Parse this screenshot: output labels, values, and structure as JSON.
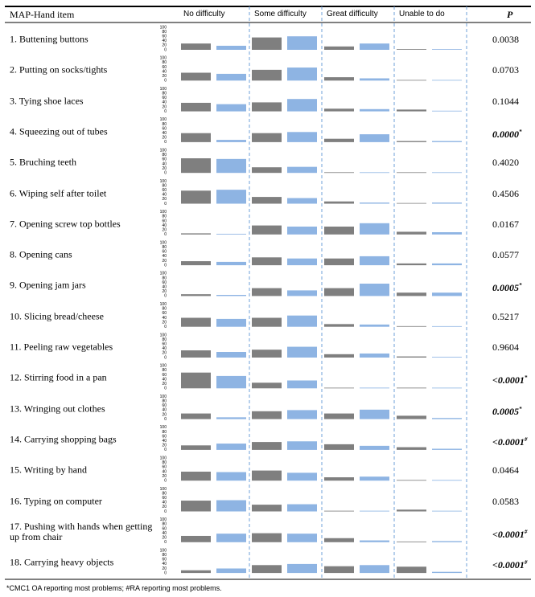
{
  "header": {
    "item": "MAP-Hand item",
    "groups": [
      "No difficulty",
      "Some difficulty",
      "Great difficulty",
      "Unable to do"
    ],
    "p": "P"
  },
  "chart": {
    "ylim": [
      0,
      100
    ],
    "ticks": [
      100,
      80,
      60,
      40,
      20,
      0
    ],
    "colors": [
      "#7f7f7f",
      "#8eb4e3"
    ]
  },
  "rows": [
    {
      "item": "1. Buttening buttons",
      "values": [
        [
          28,
          18
        ],
        [
          55,
          60
        ],
        [
          15,
          28
        ],
        [
          3,
          0
        ]
      ],
      "p": "0.0038",
      "bold": false
    },
    {
      "item": "2. Putting on socks/tights",
      "values": [
        [
          35,
          30
        ],
        [
          48,
          58
        ],
        [
          15,
          10
        ],
        [
          2,
          0
        ]
      ],
      "p": "0.0703",
      "bold": false
    },
    {
      "item": "3. Tying shoe laces",
      "values": [
        [
          38,
          32
        ],
        [
          40,
          55
        ],
        [
          12,
          10
        ],
        [
          8,
          2
        ]
      ],
      "p": "0.1044",
      "bold": false
    },
    {
      "item": "4. Squeezing out of tubes",
      "values": [
        [
          40,
          10
        ],
        [
          40,
          45
        ],
        [
          15,
          35
        ],
        [
          5,
          5
        ]
      ],
      "p": "0.0000",
      "mark": "*",
      "bold": true
    },
    {
      "item": "5. Bruching teeth",
      "values": [
        [
          65,
          62
        ],
        [
          25,
          27
        ],
        [
          3,
          2
        ],
        [
          0,
          0
        ]
      ],
      "p": "0.4020",
      "bold": false
    },
    {
      "item": "6. Wiping self after toilet",
      "values": [
        [
          58,
          62
        ],
        [
          30,
          25
        ],
        [
          10,
          5
        ],
        [
          0,
          5
        ]
      ],
      "p": "0.4506",
      "bold": false
    },
    {
      "item": "7. Opening screw top bottles",
      "values": [
        [
          5,
          3
        ],
        [
          40,
          35
        ],
        [
          35,
          50
        ],
        [
          12,
          10
        ]
      ],
      "p": "0.0167",
      "bold": false
    },
    {
      "item": "8. Opening cans",
      "values": [
        [
          18,
          15
        ],
        [
          35,
          30
        ],
        [
          30,
          40
        ],
        [
          8,
          8
        ]
      ],
      "p": "0.0577",
      "bold": false
    },
    {
      "item": "9. Opening jam jars",
      "values": [
        [
          8,
          5
        ],
        [
          35,
          25
        ],
        [
          35,
          55
        ],
        [
          15,
          15
        ]
      ],
      "p": "0.0005",
      "mark": "*",
      "bold": true
    },
    {
      "item": "10. Slicing bread/cheese",
      "values": [
        [
          40,
          35
        ],
        [
          40,
          50
        ],
        [
          12,
          10
        ],
        [
          3,
          0
        ]
      ],
      "p": "0.5217",
      "bold": false
    },
    {
      "item": "11. Peeling raw vegetables",
      "values": [
        [
          32,
          25
        ],
        [
          35,
          48
        ],
        [
          15,
          18
        ],
        [
          5,
          3
        ]
      ],
      "p": "0.9604",
      "bold": false
    },
    {
      "item": "12. Stirring food in a pan",
      "values": [
        [
          70,
          55
        ],
        [
          25,
          35
        ],
        [
          2,
          3
        ],
        [
          3,
          0
        ]
      ],
      "p": "<0.0001",
      "mark": "*",
      "bold": true
    },
    {
      "item": "13. Wringing out clothes",
      "values": [
        [
          25,
          8
        ],
        [
          35,
          40
        ],
        [
          25,
          42
        ],
        [
          15,
          5
        ]
      ],
      "p": "0.0005",
      "mark": "*",
      "bold": true
    },
    {
      "item": "14. Carrying shopping bags",
      "values": [
        [
          20,
          28
        ],
        [
          35,
          38
        ],
        [
          25,
          18
        ],
        [
          12,
          5
        ]
      ],
      "p": "<0.0001",
      "mark": "#",
      "bold": true
    },
    {
      "item": "15. Writing by hand",
      "values": [
        [
          40,
          38
        ],
        [
          45,
          35
        ],
        [
          15,
          18
        ],
        [
          3,
          3
        ]
      ],
      "p": "0.0464",
      "bold": false
    },
    {
      "item": "16. Typing on computer",
      "values": [
        [
          48,
          50
        ],
        [
          30,
          32
        ],
        [
          3,
          3
        ],
        [
          8,
          0
        ]
      ],
      "p": "0.0583",
      "bold": false
    },
    {
      "item": "17. Pushing with hands when getting up from chair",
      "values": [
        [
          28,
          38
        ],
        [
          40,
          38
        ],
        [
          18,
          8
        ],
        [
          3,
          5
        ]
      ],
      "p": "<0.0001",
      "mark": "#",
      "bold": true
    },
    {
      "item": "18. Carrying heavy objects",
      "values": [
        [
          12,
          20
        ],
        [
          35,
          40
        ],
        [
          30,
          35
        ],
        [
          28,
          5
        ]
      ],
      "p": "<0.0001",
      "mark": "#",
      "bold": true
    }
  ],
  "footnote": "*CMC1 OA reporting most problems; #RA reporting most problems."
}
